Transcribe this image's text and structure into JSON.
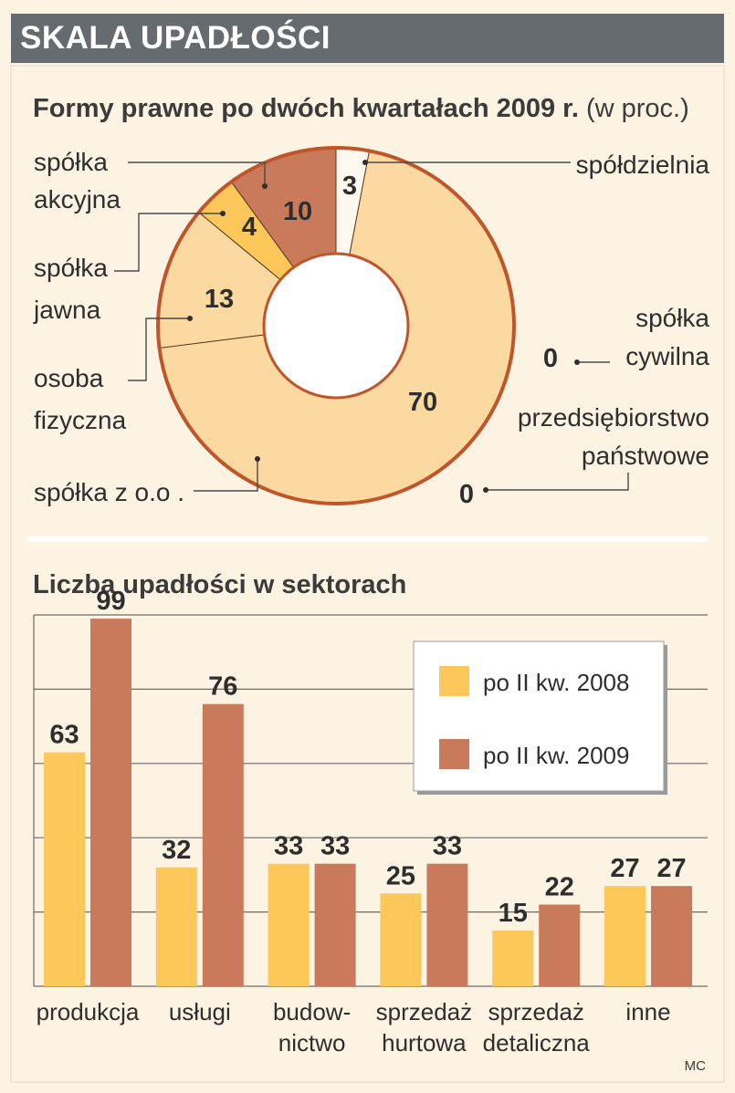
{
  "header": {
    "title": "SKALA UPADŁOŚCI"
  },
  "colors": {
    "header_bg": "#666b6f",
    "panel_bg": "#fdf3e3",
    "yellow": "#fdc75a",
    "brown": "#c97a5a",
    "light": "#fcd9a0",
    "ring": "#c0552a",
    "pale": "#fff8ee"
  },
  "credit": "MC",
  "chart_data": [
    {
      "type": "pie",
      "variant": "donut",
      "title": "Formy prawne po dwóch kwartałach 2009 r.",
      "unit_note": "(w proc.)",
      "slices": [
        {
          "label": "spółdzielnia",
          "value": 3
        },
        {
          "label": "spółka z o.o .",
          "value": 70
        },
        {
          "label": "osoba fizyczna",
          "value": 13
        },
        {
          "label": "spółka jawna",
          "value": 4
        },
        {
          "label": "spółka akcyjna",
          "value": 10
        },
        {
          "label": "spółka cywilna",
          "value": 0
        },
        {
          "label": "przedsiębiorstwo państwowe",
          "value": 0
        }
      ]
    },
    {
      "type": "bar",
      "title": "Liczba upadłości w sektorach",
      "categories": [
        "produkcja",
        "usługi",
        "budow-nictwo",
        "sprzedaż hurtowa",
        "sprzedaż detaliczna",
        "inne"
      ],
      "category_lines": [
        [
          "produkcja"
        ],
        [
          "usługi"
        ],
        [
          "budow-",
          "nictwo"
        ],
        [
          "sprzedaż",
          "hurtowa"
        ],
        [
          "sprzedaż",
          "detaliczna"
        ],
        [
          "inne"
        ]
      ],
      "series": [
        {
          "name": "po II kw. 2008",
          "color": "#fdc75a",
          "values": [
            63,
            32,
            33,
            25,
            15,
            27
          ]
        },
        {
          "name": "po II kw. 2009",
          "color": "#c97a5a",
          "values": [
            99,
            76,
            33,
            33,
            22,
            27
          ]
        }
      ],
      "ylim": [
        0,
        100
      ],
      "grid": true,
      "legend": "top-right"
    }
  ]
}
